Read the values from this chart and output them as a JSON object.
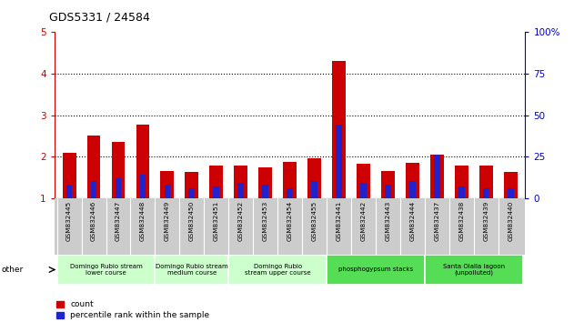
{
  "title": "GDS5331 / 24584",
  "samples": [
    "GSM832445",
    "GSM832446",
    "GSM832447",
    "GSM832448",
    "GSM832449",
    "GSM832450",
    "GSM832451",
    "GSM832452",
    "GSM832453",
    "GSM832454",
    "GSM832455",
    "GSM832441",
    "GSM832442",
    "GSM832443",
    "GSM832444",
    "GSM832437",
    "GSM832438",
    "GSM832439",
    "GSM832440"
  ],
  "count_values": [
    2.1,
    2.5,
    2.35,
    2.78,
    1.65,
    1.62,
    1.78,
    1.78,
    1.75,
    1.88,
    1.95,
    4.3,
    1.82,
    1.65,
    1.85,
    2.05,
    1.78,
    1.78,
    1.62
  ],
  "percentile_values": [
    8,
    10,
    12,
    14,
    8,
    6,
    7,
    9,
    8,
    6,
    10,
    44,
    9,
    8,
    10,
    26,
    7,
    6,
    6
  ],
  "ylim_left": [
    1,
    5
  ],
  "ylim_right": [
    0,
    100
  ],
  "yticks_left": [
    1,
    2,
    3,
    4,
    5
  ],
  "yticks_right": [
    0,
    25,
    50,
    75,
    100
  ],
  "groups": [
    {
      "label": "Domingo Rubio stream\nlower course",
      "start": 0,
      "end": 3
    },
    {
      "label": "Domingo Rubio stream\nmedium course",
      "start": 4,
      "end": 6
    },
    {
      "label": "Domingo Rubio\nstream upper course",
      "start": 7,
      "end": 10
    },
    {
      "label": "phosphogypsum stacks",
      "start": 11,
      "end": 14
    },
    {
      "label": "Santa Olalla lagoon\n(unpolluted)",
      "start": 15,
      "end": 18
    }
  ],
  "group_colors": [
    "#ccffcc",
    "#ccffcc",
    "#ccffcc",
    "#55dd55",
    "#55dd55"
  ],
  "bar_color_red": "#cc0000",
  "bar_color_blue": "#2222cc",
  "background_color": "#ffffff",
  "left_axis_color": "#cc0000",
  "right_axis_color": "#0000cc",
  "xlabel_area_color": "#cccccc",
  "dotted_lines": [
    2,
    3,
    4
  ]
}
